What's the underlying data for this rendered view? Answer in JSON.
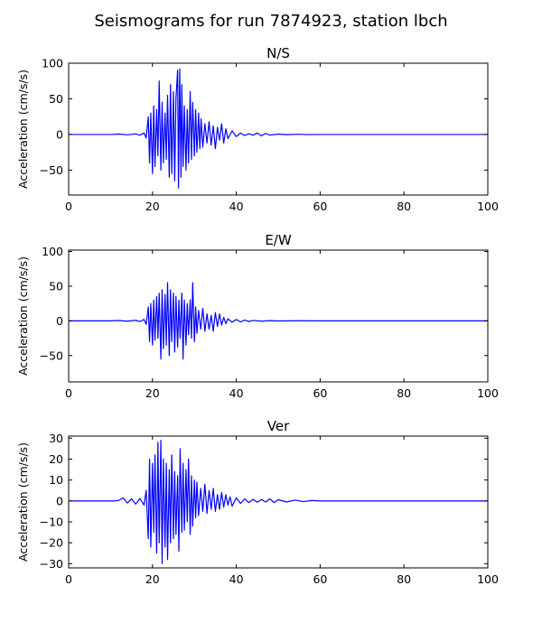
{
  "figure": {
    "title": "Seismograms for run 7874923, station lbch",
    "line_color": "#0000ff"
  },
  "chart_data": [
    {
      "type": "line",
      "title": "N/S",
      "xlabel": "",
      "ylabel": "Acceleration (cm/s/s)",
      "xlim": [
        0,
        100
      ],
      "ylim": [
        -85,
        100
      ],
      "xticks": [
        0,
        20,
        40,
        60,
        80,
        100
      ],
      "yticks": [
        -50,
        0,
        50,
        100
      ],
      "grid": false,
      "series": [
        {
          "x": [
            0,
            5,
            10,
            12,
            14,
            16,
            17,
            18,
            18.5,
            19,
            19.3,
            19.6,
            20,
            20.3,
            20.6,
            21,
            21.3,
            21.6,
            22,
            22.3,
            22.6,
            23,
            23.3,
            23.6,
            24,
            24.3,
            24.6,
            25,
            25.3,
            25.6,
            26,
            26.2,
            26.5,
            26.8,
            27,
            27.3,
            27.6,
            28,
            28.3,
            28.6,
            29,
            29.3,
            29.6,
            30,
            30.3,
            30.6,
            31,
            31.3,
            31.6,
            32,
            32.5,
            33,
            33.5,
            34,
            34.5,
            35,
            35.5,
            36,
            36.5,
            37,
            37.5,
            38,
            39,
            40,
            41,
            42,
            43,
            44,
            45,
            46,
            47,
            48,
            50,
            52,
            55,
            57,
            60,
            70,
            80,
            90,
            100
          ],
          "y": [
            0,
            0,
            0,
            0.5,
            -0.5,
            0.8,
            -1,
            2,
            -5,
            25,
            -40,
            30,
            -55,
            40,
            -45,
            35,
            -30,
            75,
            -50,
            45,
            -40,
            30,
            -35,
            55,
            -60,
            70,
            -55,
            60,
            -65,
            50,
            90,
            -75,
            92,
            -60,
            70,
            -45,
            40,
            -50,
            35,
            -40,
            60,
            -35,
            45,
            -30,
            35,
            -25,
            30,
            -20,
            22,
            -18,
            15,
            -12,
            18,
            -15,
            12,
            -20,
            10,
            -8,
            15,
            -12,
            8,
            -6,
            5,
            -3,
            2,
            -1.5,
            1,
            -1,
            2,
            -2,
            1.5,
            -1,
            0.5,
            -0.3,
            0.3,
            -0.2,
            0,
            0,
            0,
            0,
            0
          ]
        }
      ]
    },
    {
      "type": "line",
      "title": "E/W",
      "xlabel": "",
      "ylabel": "Acceleration (cm/s/s)",
      "xlim": [
        0,
        100
      ],
      "ylim": [
        -88,
        102
      ],
      "xticks": [
        0,
        20,
        40,
        60,
        80,
        100
      ],
      "yticks": [
        -50,
        0,
        50,
        100
      ],
      "grid": false,
      "series": [
        {
          "x": [
            0,
            5,
            10,
            12,
            14,
            16,
            17,
            18,
            18.5,
            19,
            19.3,
            19.6,
            20,
            20.3,
            20.6,
            21,
            21.3,
            21.6,
            22,
            22.3,
            22.6,
            23,
            23.3,
            23.6,
            24,
            24.3,
            24.6,
            25,
            25.3,
            25.6,
            26,
            26.3,
            26.6,
            27,
            27.3,
            27.6,
            28,
            28.3,
            28.6,
            29,
            29.3,
            29.6,
            30,
            30.3,
            30.6,
            31,
            31.5,
            32,
            32.5,
            33,
            33.5,
            34,
            34.5,
            35,
            35.5,
            36,
            36.5,
            37,
            37.5,
            38,
            39,
            40,
            41,
            42,
            43,
            44,
            46,
            48,
            50,
            55,
            60,
            70,
            80,
            90,
            100
          ],
          "y": [
            0,
            0,
            0,
            0.5,
            -0.5,
            0.8,
            -1,
            2,
            -5,
            20,
            -30,
            25,
            -35,
            30,
            -28,
            35,
            -25,
            40,
            -55,
            45,
            -40,
            38,
            -35,
            55,
            -50,
            45,
            -30,
            40,
            -45,
            35,
            -38,
            30,
            -25,
            40,
            -55,
            30,
            -35,
            25,
            -20,
            30,
            -25,
            55,
            -30,
            20,
            -18,
            15,
            -12,
            18,
            -15,
            10,
            -12,
            8,
            -15,
            12,
            -8,
            10,
            -6,
            5,
            -4,
            3,
            -2,
            2,
            -1.5,
            1,
            -0.8,
            0.6,
            -0.5,
            0.3,
            -0.2,
            0.2,
            0,
            0,
            0,
            0,
            0
          ]
        }
      ]
    },
    {
      "type": "line",
      "title": "Ver",
      "xlabel": "",
      "ylabel": "Acceleration (cm/s/s)",
      "xlim": [
        0,
        100
      ],
      "ylim": [
        -32,
        31
      ],
      "xticks": [
        0,
        20,
        40,
        60,
        80,
        100
      ],
      "yticks": [
        -30,
        -20,
        -10,
        0,
        10,
        20,
        30
      ],
      "grid": false,
      "series": [
        {
          "x": [
            0,
            5,
            10,
            11,
            12,
            13,
            14,
            15,
            16,
            17,
            18,
            18.5,
            19,
            19.3,
            19.6,
            20,
            20.3,
            20.6,
            21,
            21.3,
            21.6,
            22,
            22.3,
            22.6,
            23,
            23.3,
            23.6,
            24,
            24.3,
            24.6,
            25,
            25.3,
            25.6,
            26,
            26.3,
            26.6,
            27,
            27.3,
            27.6,
            28,
            28.3,
            28.6,
            29,
            29.3,
            29.6,
            30,
            30.3,
            30.6,
            31,
            31.5,
            32,
            32.5,
            33,
            33.5,
            34,
            34.5,
            35,
            35.5,
            36,
            36.5,
            37,
            37.5,
            38,
            38.5,
            39,
            40,
            41,
            42,
            43,
            44,
            45,
            46,
            47,
            48,
            49,
            50,
            52,
            54,
            56,
            58,
            60,
            70,
            80,
            90,
            100
          ],
          "y": [
            0,
            0,
            0,
            0,
            0.3,
            1.5,
            -1,
            1,
            -1.5,
            1.2,
            -2,
            5,
            -18,
            20,
            -22,
            18,
            -15,
            22,
            -25,
            28,
            -20,
            29,
            -30,
            20,
            -22,
            18,
            -28,
            15,
            -20,
            22,
            -18,
            14,
            -16,
            12,
            -24,
            25,
            -15,
            18,
            -14,
            15,
            -10,
            20,
            -16,
            12,
            -12,
            10,
            -8,
            9,
            -7,
            6,
            -5,
            8,
            -6,
            5,
            -4,
            6,
            -5,
            3,
            -4,
            4,
            -3,
            3,
            -2,
            2,
            -2.5,
            1.5,
            -1.2,
            1,
            -0.8,
            0.8,
            -0.6,
            0.7,
            -0.5,
            1,
            -0.8,
            0.6,
            -0.5,
            0.4,
            -0.3,
            0.2,
            0,
            0,
            0,
            0,
            0
          ]
        }
      ]
    }
  ]
}
